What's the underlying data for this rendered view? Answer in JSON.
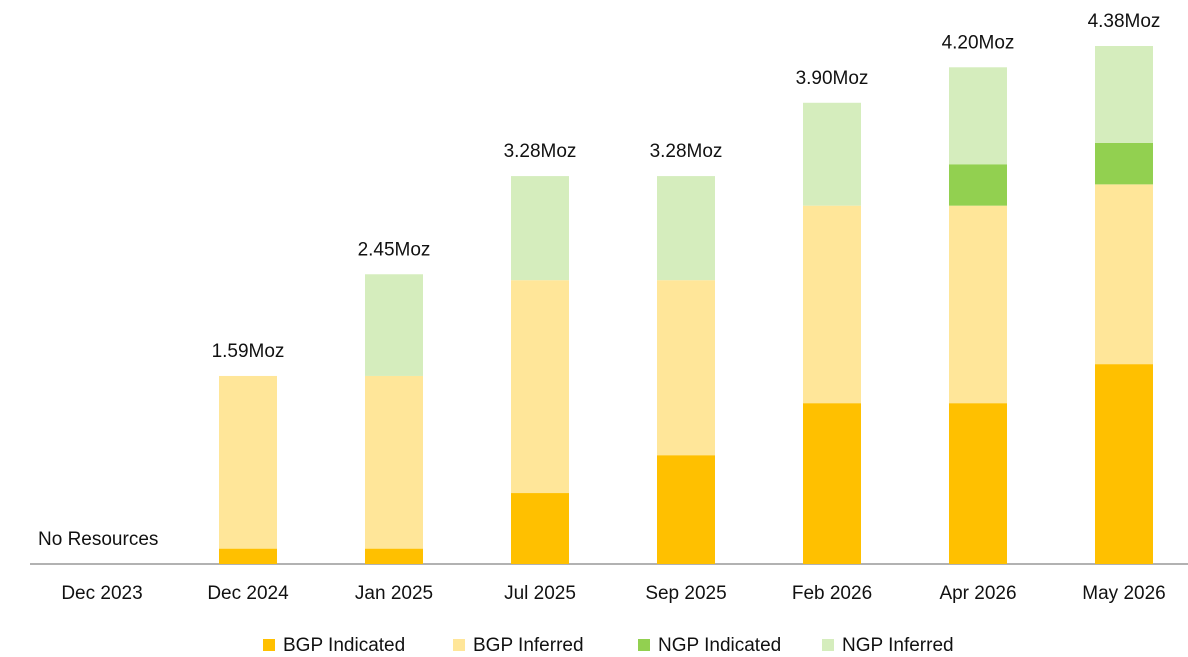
{
  "chart_data": {
    "type": "stacked_bar",
    "categories": [
      "Dec 2023",
      "Dec 2024",
      "Jan 2025",
      "Jul 2025",
      "Sep 2025",
      "Feb 2026",
      "Apr 2026",
      "May 2026"
    ],
    "series": [
      {
        "name": "BGP Indicated",
        "color": "#ffc000",
        "values": [
          null,
          0.13,
          0.13,
          0.6,
          0.92,
          1.36,
          1.36,
          1.69
        ]
      },
      {
        "name": "BGP Inferred",
        "color": "#ffe699",
        "values": [
          null,
          1.46,
          1.46,
          1.8,
          1.48,
          1.67,
          1.67,
          1.52
        ]
      },
      {
        "name": "NGP Indicated",
        "color": "#92d050",
        "values": [
          null,
          null,
          null,
          null,
          null,
          null,
          0.35,
          0.35
        ]
      },
      {
        "name": "NGP Inferred",
        "color": "#d5edbd",
        "values": [
          null,
          null,
          0.86,
          0.88,
          0.88,
          0.87,
          0.82,
          0.82
        ]
      }
    ],
    "totals": [
      null,
      1.59,
      2.45,
      3.28,
      3.28,
      3.9,
      4.2,
      4.38
    ],
    "total_labels": [
      null,
      "1.59Moz",
      "2.45Moz",
      "3.28Moz",
      "3.28Moz",
      "3.90Moz",
      "4.20Moz",
      "4.38Moz"
    ],
    "annotation": "No Resources",
    "legend": "bottom"
  }
}
